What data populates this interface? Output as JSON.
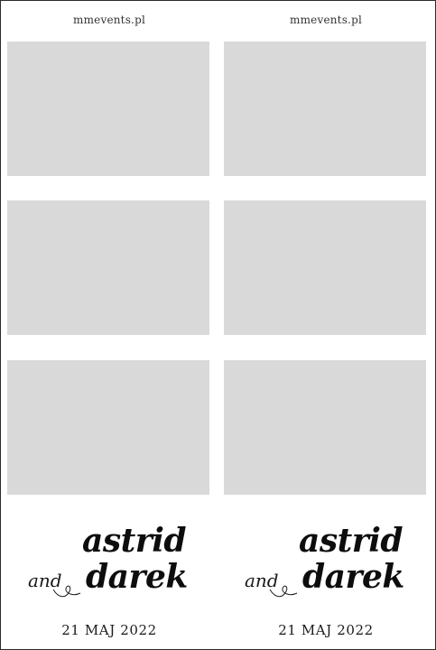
{
  "strips": [
    {
      "site": "mmevents.pl",
      "name_first": "astrid",
      "conjunction": "and",
      "name_second": "darek",
      "date": "21 MAJ 2022"
    },
    {
      "site": "mmevents.pl",
      "name_first": "astrid",
      "conjunction": "and",
      "name_second": "darek",
      "date": "21 MAJ 2022"
    }
  ],
  "colors": {
    "photo_placeholder": "#d9d9d9",
    "text": "#0d0d0d",
    "border": "#2b2b2b"
  }
}
